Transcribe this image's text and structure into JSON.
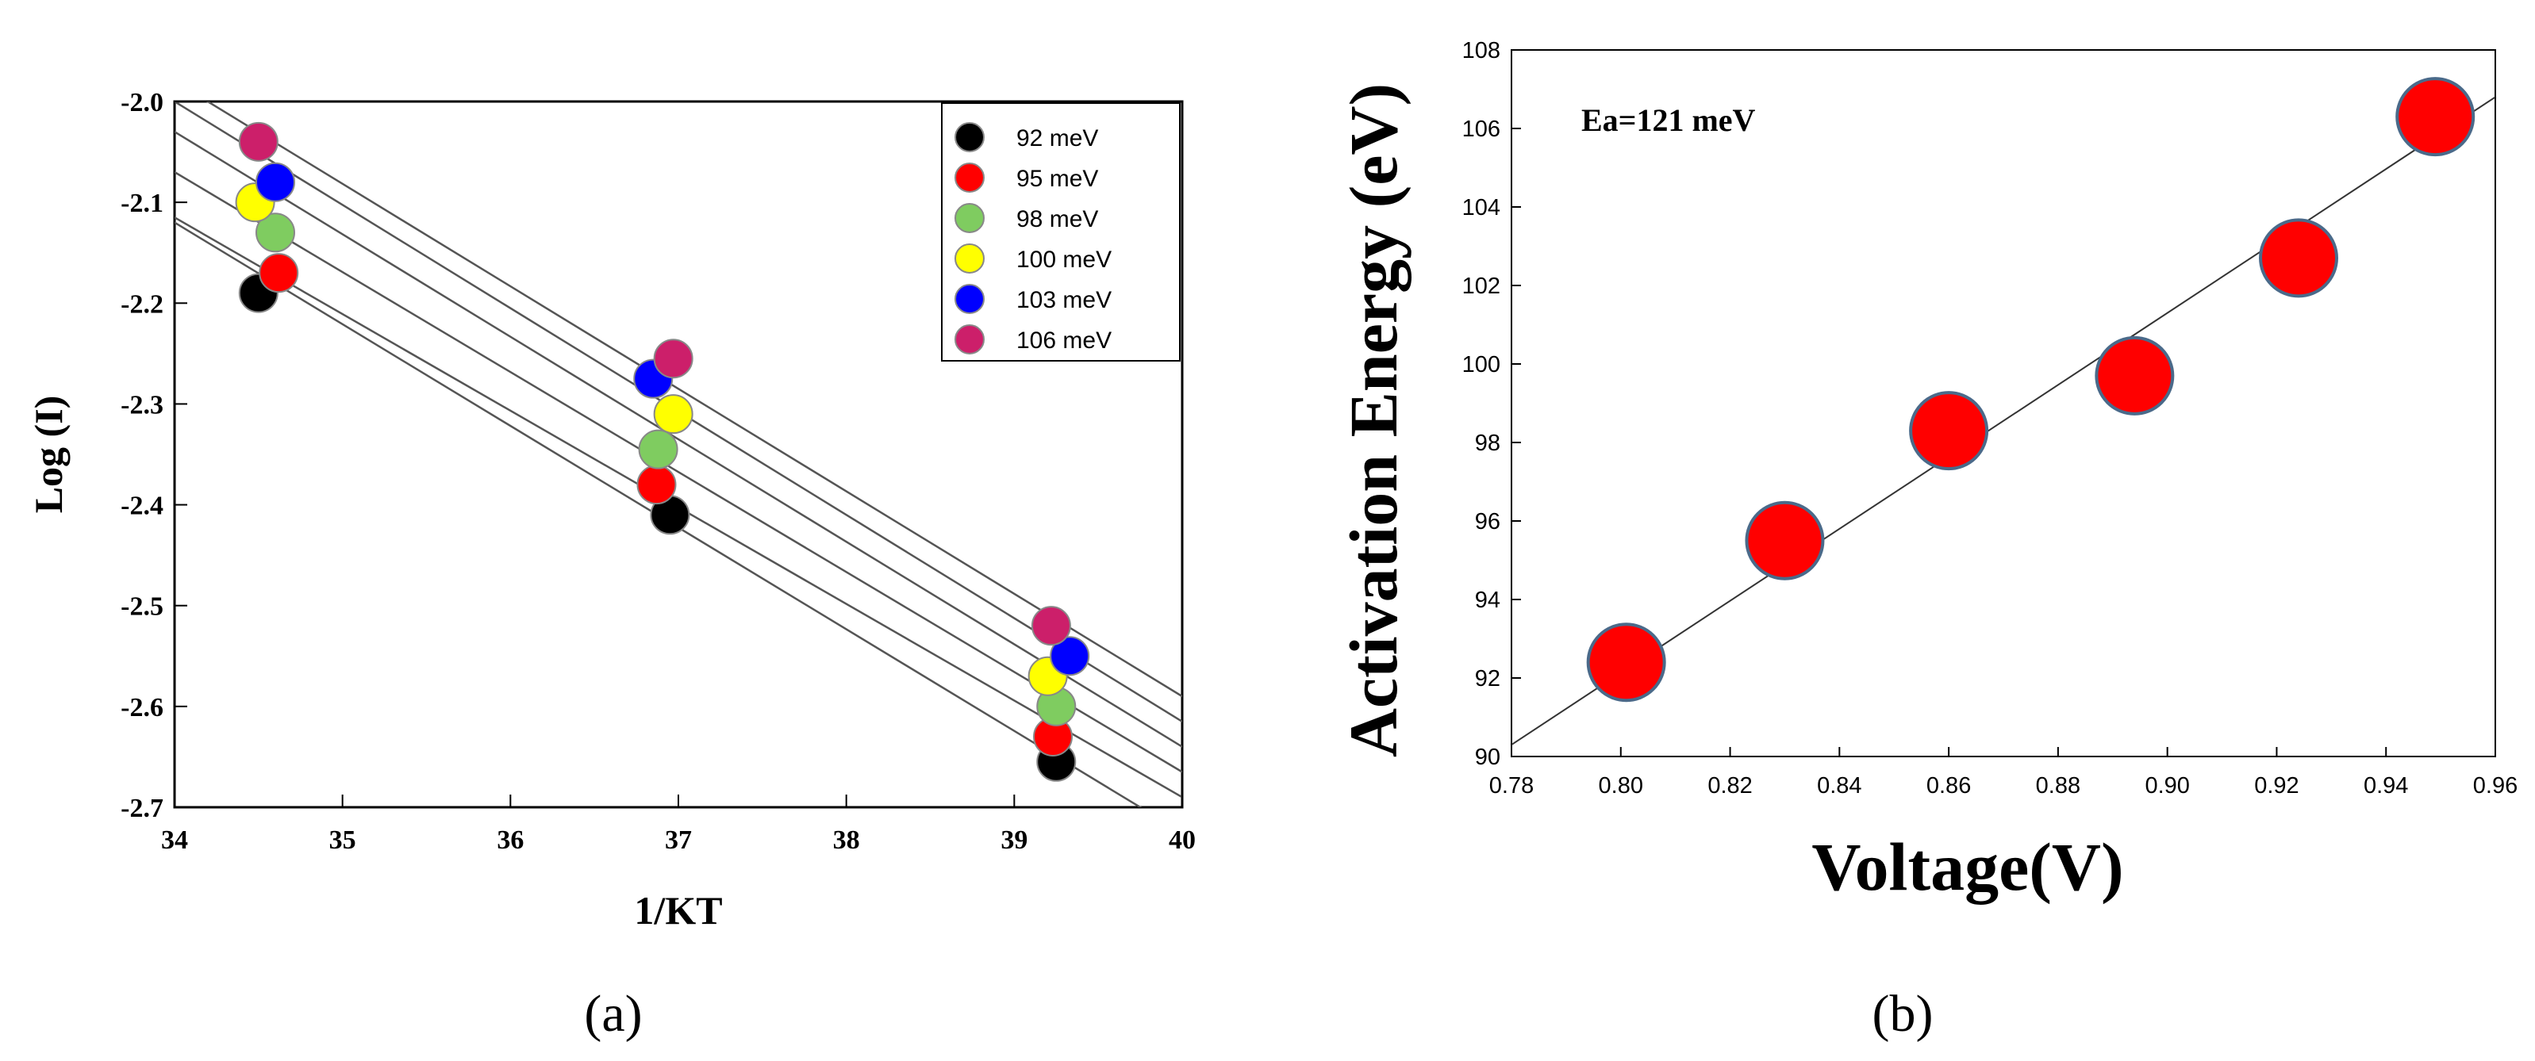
{
  "chart_data": [
    {
      "type": "scatter",
      "panel_label": "(a)",
      "title": "",
      "xlabel": "1/KT",
      "ylabel": "Log (I)",
      "xlim": [
        34,
        40
      ],
      "ylim": [
        -2.7,
        -2.0
      ],
      "xticks": [
        34,
        35,
        36,
        37,
        38,
        39,
        40
      ],
      "yticks": [
        -2.7,
        -2.6,
        -2.5,
        -2.4,
        -2.3,
        -2.2,
        -2.1,
        -2.0
      ],
      "ytick_labels": [
        "-2.7",
        "-2.6",
        "-2.5",
        "-2.4",
        "-2.3",
        "-2.2",
        "-2.1",
        "-2.0"
      ],
      "grid": false,
      "legend_position": "top-right",
      "series": [
        {
          "name": "92 meV",
          "color": "#000000",
          "x": [
            34.5,
            36.95,
            39.25
          ],
          "y": [
            -2.19,
            -2.41,
            -2.655
          ],
          "fit": {
            "x": [
              34.0,
              39.8
            ],
            "y": [
              -2.12,
              -2.705
            ]
          }
        },
        {
          "name": "95 meV",
          "color": "#ff0000",
          "x": [
            34.62,
            36.87,
            39.23
          ],
          "y": [
            -2.17,
            -2.38,
            -2.63
          ],
          "fit": {
            "x": [
              34.0,
              40.0
            ],
            "y": [
              -2.115,
              -2.69
            ]
          }
        },
        {
          "name": "98 meV",
          "color": "#7fcc60",
          "x": [
            34.6,
            36.88,
            39.25
          ],
          "y": [
            -2.13,
            -2.345,
            -2.6
          ],
          "fit": {
            "x": [
              34.0,
              40.0
            ],
            "y": [
              -2.07,
              -2.665
            ]
          }
        },
        {
          "name": "100 meV",
          "color": "#ffff00",
          "x": [
            34.48,
            36.97,
            39.2
          ],
          "y": [
            -2.1,
            -2.31,
            -2.57
          ],
          "fit": {
            "x": [
              34.0,
              40.0
            ],
            "y": [
              -2.03,
              -2.64
            ]
          }
        },
        {
          "name": "103 meV",
          "color": "#0000ff",
          "x": [
            34.6,
            36.85,
            39.33
          ],
          "y": [
            -2.08,
            -2.275,
            -2.55
          ],
          "fit": {
            "x": [
              34.0,
              40.0
            ],
            "y": [
              -2.0,
              -2.615
            ]
          }
        },
        {
          "name": "106 meV",
          "color": "#cc1f6a",
          "x": [
            34.5,
            36.97,
            39.22
          ],
          "y": [
            -2.04,
            -2.255,
            -2.52
          ],
          "fit": {
            "x": [
              34.05,
              40.0
            ],
            "y": [
              -1.985,
              -2.59
            ]
          }
        }
      ]
    },
    {
      "type": "scatter",
      "panel_label": "(b)",
      "title": "",
      "annotation": "Ea=121 meV",
      "xlabel": "Voltage(V)",
      "ylabel": "Activation Energy (eV)",
      "xlim": [
        0.78,
        0.96
      ],
      "ylim": [
        90,
        108
      ],
      "xticks": [
        0.78,
        0.8,
        0.82,
        0.84,
        0.86,
        0.88,
        0.9,
        0.92,
        0.94,
        0.96
      ],
      "xtick_labels": [
        "0.78",
        "0.80",
        "0.82",
        "0.84",
        "0.86",
        "0.88",
        "0.90",
        "0.92",
        "0.94",
        "0.96"
      ],
      "yticks": [
        90,
        92,
        94,
        96,
        98,
        100,
        102,
        104,
        106,
        108
      ],
      "grid": false,
      "series": [
        {
          "name": "Activation Energy",
          "color": "#ff0000",
          "x": [
            0.801,
            0.83,
            0.86,
            0.894,
            0.924,
            0.949
          ],
          "y": [
            92.4,
            95.5,
            98.3,
            99.7,
            102.7,
            106.3
          ],
          "fit": {
            "x": [
              0.78,
              0.96
            ],
            "y": [
              90.3,
              106.8
            ]
          }
        }
      ]
    }
  ]
}
